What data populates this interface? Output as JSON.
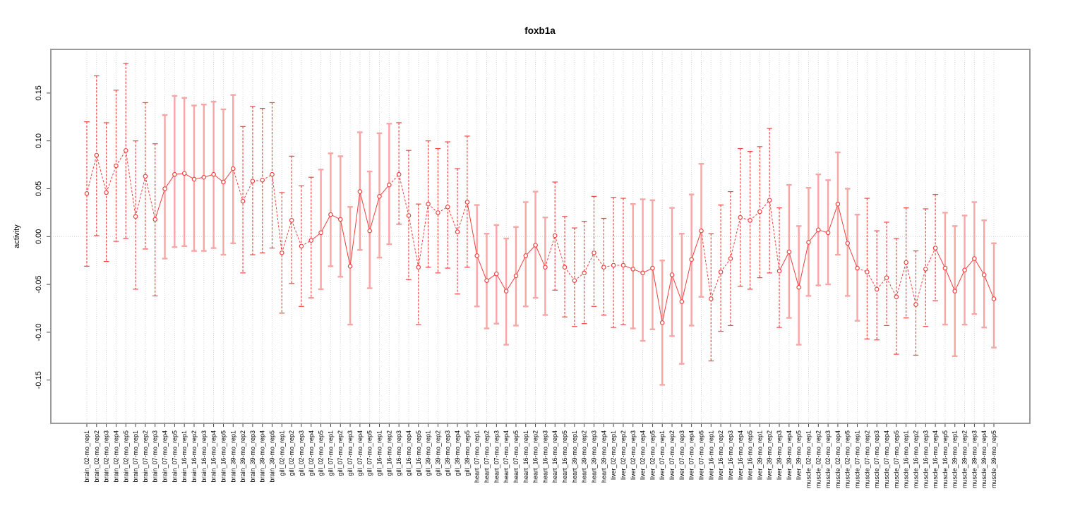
{
  "figure": {
    "title": "foxb1a"
  },
  "chart_data": {
    "type": "scatter",
    "style": "open-circle points connected by line, with vertical error bars and caps (R plotCI style)",
    "title": "foxb1a",
    "xlabel": "",
    "ylabel": "activity",
    "legend": "none",
    "grid": "vertical dotted gridline at every category; horizontal dotted line at y=0",
    "ylim": [
      -0.195,
      0.196
    ],
    "yticks": {
      "values": [
        0.15,
        0.1,
        0.05,
        0.0,
        -0.05,
        -0.1,
        -0.15
      ],
      "labels": [
        "0.15",
        "0.10",
        "0.05",
        "0.00",
        "-0.05",
        "-0.10",
        "-0.15"
      ]
    },
    "tissues": [
      "brain",
      "gill",
      "heart",
      "liver",
      "muscle"
    ],
    "ages": [
      "02-mo",
      "07-mo",
      "16-mo",
      "39-mo"
    ],
    "n_points": 94,
    "categories": [
      "brain_02-mo_rep1",
      "brain_02-mo_rep2",
      "brain_02-mo_rep3",
      "brain_02-mo_rep4",
      "brain_02-mo_rep5",
      "brain_07-mo_rep1",
      "brain_07-mo_rep2",
      "brain_07-mo_rep3",
      "brain_07-mo_rep4",
      "brain_07-mo_rep5",
      "brain_16-mo_rep1",
      "brain_16-mo_rep2",
      "brain_16-mo_rep3",
      "brain_16-mo_rep4",
      "brain_16-mo_rep5",
      "brain_39-mo_rep1",
      "brain_39-mo_rep2",
      "brain_39-mo_rep3",
      "brain_39-mo_rep4",
      "brain_39-mo_rep5",
      "gill_02-mo_rep1",
      "gill_02-mo_rep2",
      "gill_02-mo_rep3",
      "gill_02-mo_rep4",
      "gill_02-mo_rep5",
      "gill_07-mo_rep1",
      "gill_07-mo_rep2",
      "gill_07-mo_rep3",
      "gill_07-mo_rep4",
      "gill_07-mo_rep5",
      "gill_16-mo_rep1",
      "gill_16-mo_rep2",
      "gill_16-mo_rep3",
      "gill_16-mo_rep4",
      "gill_16-mo_rep5",
      "gill_39-mo_rep1",
      "gill_39-mo_rep2",
      "gill_39-mo_rep3",
      "gill_39-mo_rep4",
      "gill_39-mo_rep5",
      "heart_07-mo_rep1",
      "heart_07-mo_rep2",
      "heart_07-mo_rep3",
      "heart_07-mo_rep4",
      "heart_07-mo_rep5",
      "heart_16-mo_rep1",
      "heart_16-mo_rep2",
      "heart_16-mo_rep3",
      "heart_16-mo_rep4",
      "heart_16-mo_rep5",
      "heart_39-mo_rep1",
      "heart_39-mo_rep2",
      "heart_39-mo_rep3",
      "heart_39-mo_rep4",
      "liver_02-mo_rep1",
      "liver_02-mo_rep2",
      "liver_02-mo_rep3",
      "liver_02-mo_rep4",
      "liver_02-mo_rep5",
      "liver_07-mo_rep1",
      "liver_07-mo_rep2",
      "liver_07-mo_rep3",
      "liver_07-mo_rep4",
      "liver_07-mo_rep5",
      "liver_16-mo_rep1",
      "liver_16-mo_rep2",
      "liver_16-mo_rep3",
      "liver_16-mo_rep4",
      "liver_16-mo_rep5",
      "liver_39-mo_rep1",
      "liver_39-mo_rep2",
      "liver_39-mo_rep3",
      "liver_39-mo_rep4",
      "liver_39-mo_rep5",
      "muscle_02-mo_rep1",
      "muscle_02-mo_rep2",
      "muscle_02-mo_rep3",
      "muscle_02-mo_rep4",
      "muscle_02-mo_rep5",
      "muscle_07-mo_rep1",
      "muscle_07-mo_rep2",
      "muscle_07-mo_rep3",
      "muscle_07-mo_rep4",
      "muscle_07-mo_rep5",
      "muscle_16-mo_rep1",
      "muscle_16-mo_rep2",
      "muscle_16-mo_rep3",
      "muscle_16-mo_rep4",
      "muscle_16-mo_rep5",
      "muscle_39-mo_rep1",
      "muscle_39-mo_rep2",
      "muscle_39-mo_rep3",
      "muscle_39-mo_rep4",
      "muscle_39-mo_rep5"
    ],
    "series": [
      {
        "name": "activity",
        "values": [
          0.045,
          0.085,
          0.046,
          0.074,
          0.09,
          0.021,
          0.063,
          0.018,
          0.05,
          0.065,
          0.066,
          0.06,
          0.062,
          0.065,
          0.057,
          0.071,
          0.037,
          0.058,
          0.059,
          0.065,
          -0.017,
          0.017,
          -0.01,
          -0.004,
          0.004,
          0.023,
          0.018,
          -0.031,
          0.047,
          0.006,
          0.042,
          0.054,
          0.065,
          0.022,
          -0.032,
          0.034,
          0.025,
          0.031,
          0.005,
          0.036,
          -0.02,
          -0.046,
          -0.039,
          -0.057,
          -0.041,
          -0.02,
          -0.009,
          -0.032,
          0.001,
          -0.032,
          -0.046,
          -0.038,
          -0.017,
          -0.032,
          -0.03,
          -0.03,
          -0.034,
          -0.038,
          -0.033,
          -0.09,
          -0.04,
          -0.068,
          -0.024,
          0.006,
          -0.065,
          -0.037,
          -0.023,
          0.02,
          0.017,
          0.026,
          0.038,
          -0.036,
          -0.016,
          -0.053,
          -0.006,
          0.007,
          0.004,
          0.034,
          -0.007,
          -0.033,
          -0.037,
          -0.055,
          -0.043,
          -0.063,
          -0.027,
          -0.071,
          -0.034,
          -0.012,
          -0.033,
          -0.057,
          -0.035,
          -0.023,
          -0.04,
          -0.065
        ],
        "err_lo": [
          -0.031,
          0.001,
          -0.026,
          -0.005,
          -0.002,
          -0.055,
          -0.013,
          -0.062,
          -0.023,
          -0.011,
          -0.01,
          -0.015,
          -0.015,
          -0.012,
          -0.019,
          -0.007,
          -0.038,
          -0.019,
          -0.017,
          -0.012,
          -0.08,
          -0.049,
          -0.073,
          -0.064,
          -0.055,
          -0.031,
          -0.042,
          -0.092,
          -0.014,
          -0.054,
          -0.022,
          -0.008,
          0.013,
          -0.045,
          -0.092,
          -0.032,
          -0.038,
          -0.033,
          -0.06,
          -0.032,
          -0.073,
          -0.096,
          -0.091,
          -0.113,
          -0.093,
          -0.073,
          -0.064,
          -0.082,
          -0.056,
          -0.084,
          -0.094,
          -0.091,
          -0.073,
          -0.082,
          -0.095,
          -0.092,
          -0.096,
          -0.109,
          -0.097,
          -0.155,
          -0.104,
          -0.133,
          -0.093,
          -0.063,
          -0.13,
          -0.099,
          -0.093,
          -0.052,
          -0.055,
          -0.043,
          -0.038,
          -0.095,
          -0.085,
          -0.113,
          -0.062,
          -0.051,
          -0.05,
          -0.019,
          -0.062,
          -0.088,
          -0.107,
          -0.108,
          -0.093,
          -0.123,
          -0.085,
          -0.124,
          -0.094,
          -0.067,
          -0.092,
          -0.125,
          -0.092,
          -0.081,
          -0.095,
          -0.116
        ],
        "err_hi": [
          0.12,
          0.168,
          0.119,
          0.153,
          0.181,
          0.1,
          0.14,
          0.097,
          0.127,
          0.147,
          0.145,
          0.137,
          0.138,
          0.141,
          0.133,
          0.148,
          0.115,
          0.136,
          0.134,
          0.14,
          0.046,
          0.084,
          0.053,
          0.062,
          0.07,
          0.087,
          0.084,
          0.031,
          0.109,
          0.068,
          0.108,
          0.118,
          0.119,
          0.09,
          0.034,
          0.1,
          0.092,
          0.099,
          0.071,
          0.105,
          0.033,
          0.003,
          0.012,
          -0.002,
          0.01,
          0.036,
          0.047,
          0.02,
          0.057,
          0.021,
          0.009,
          0.016,
          0.042,
          0.019,
          0.041,
          0.04,
          0.034,
          0.039,
          0.038,
          -0.025,
          0.03,
          0.003,
          0.044,
          0.076,
          0.003,
          0.033,
          0.047,
          0.092,
          0.089,
          0.094,
          0.113,
          0.03,
          0.054,
          0.011,
          0.051,
          0.065,
          0.059,
          0.088,
          0.05,
          0.023,
          0.04,
          0.006,
          0.015,
          -0.002,
          0.03,
          -0.015,
          0.029,
          0.044,
          0.025,
          0.011,
          0.022,
          0.036,
          0.017,
          -0.007
        ]
      }
    ],
    "colors": {
      "series": "#f23c3c",
      "error_bar_bright": "#f34545",
      "error_bar_pale": "#f7a6a6",
      "gridline": "#d4d4d4",
      "zero_line": "#d8cccc",
      "box_border": "#909090",
      "tick": "#333333",
      "text": "#000000"
    }
  }
}
